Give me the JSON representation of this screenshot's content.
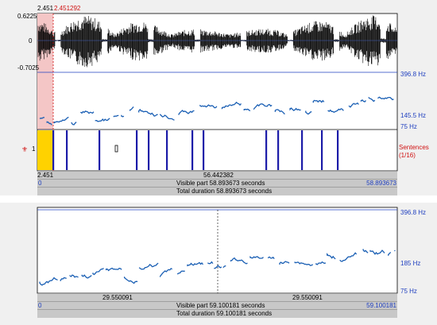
{
  "top_editor": {
    "cursor_time": "2.451",
    "cursor_time_red": "2.451292",
    "amp_max": "0.6225",
    "amp_zero": "0",
    "amp_min": "-0.7025",
    "pitch_max": "396.8 Hz",
    "pitch_mid": "145.5 Hz",
    "pitch_min": "75 Hz",
    "tier_number": "1",
    "tier_name": "Sentences",
    "tier_count": "(1/16)",
    "sel_start": "2.451",
    "sel_duration": "56.442382",
    "view_start": "0",
    "view_end": "58.893673",
    "visible_part": "Visible part 58.893673 seconds",
    "total_duration": "Total duration 58.893673 seconds"
  },
  "bottom_editor": {
    "pitch_max": "396.8 Hz",
    "pitch_mid": "185 Hz",
    "pitch_min": "75 Hz",
    "left_half": "29.550091",
    "right_half": "29.550091",
    "view_start": "0",
    "view_end": "59.100181",
    "visible_part": "Visible part 59.100181 seconds",
    "total_duration": "Total duration 59.100181 seconds"
  },
  "colors": {
    "pitch": "#1a5fb4",
    "boundary": "#1c1ca8",
    "selection": "#f4c6c6",
    "interval_fill": "#ffd200",
    "frame": "#1f3fbf"
  }
}
